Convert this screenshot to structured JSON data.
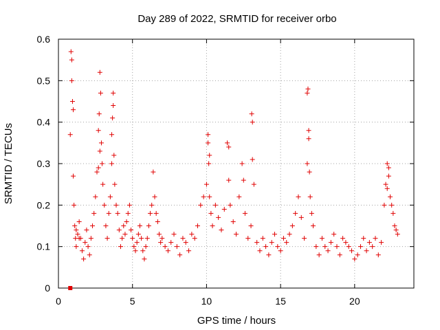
{
  "chart_data": {
    "type": "scatter",
    "title": "Day 289 of 2022, SRMTID for receiver orbo",
    "xlabel": "GPS time / hours",
    "ylabel": "SRMTID / TECUs",
    "xlim": [
      0,
      24
    ],
    "ylim": [
      0,
      0.6
    ],
    "xticks": [
      0,
      5,
      10,
      15,
      20
    ],
    "xtick_labels": [
      "0",
      "5",
      "10",
      "15",
      "20"
    ],
    "yticks": [
      0,
      0.1,
      0.2,
      0.3,
      0.4,
      0.5,
      0.6
    ],
    "ytick_labels": [
      "0",
      "0.1",
      "0.2",
      "0.3",
      "0.4",
      "0.5",
      "0.6"
    ],
    "grid": true,
    "marker": "+",
    "color": "#e00000",
    "series": [
      {
        "name": "SRMTID",
        "x": [
          0.8,
          0.85,
          0.9,
          0.95,
          1.0,
          1.05,
          1.1,
          1.15,
          1.2,
          1.3,
          1.4,
          1.5,
          1.6,
          1.7,
          1.8,
          1.9,
          2.0,
          2.1,
          2.2,
          2.3,
          2.4,
          2.5,
          2.6,
          2.7,
          2.75,
          2.8,
          2.85,
          2.9,
          2.95,
          3.0,
          3.1,
          3.2,
          3.3,
          3.4,
          3.5,
          3.6,
          3.65,
          3.7,
          3.75,
          3.8,
          3.9,
          4.0,
          4.1,
          4.2,
          4.3,
          4.4,
          4.5,
          4.6,
          4.7,
          4.8,
          4.9,
          5.0,
          5.1,
          5.2,
          5.3,
          5.4,
          5.5,
          5.6,
          5.7,
          5.8,
          5.9,
          6.0,
          6.1,
          6.2,
          6.3,
          6.4,
          6.5,
          6.6,
          6.7,
          6.8,
          6.9,
          7.0,
          7.2,
          7.4,
          7.6,
          7.8,
          8.0,
          8.2,
          8.4,
          8.6,
          8.8,
          9.0,
          9.2,
          9.4,
          9.6,
          9.8,
          10.0,
          10.1,
          10.15,
          10.2,
          10.3,
          10.4,
          10.6,
          10.8,
          11.0,
          11.2,
          11.4,
          11.5,
          11.6,
          11.8,
          12.0,
          12.2,
          12.4,
          12.5,
          12.6,
          12.8,
          13.0,
          13.05,
          13.1,
          13.2,
          13.4,
          13.6,
          13.8,
          14.0,
          14.2,
          14.4,
          14.6,
          14.8,
          15.0,
          15.2,
          15.4,
          15.6,
          15.8,
          16.0,
          16.2,
          16.4,
          16.6,
          16.8,
          16.85,
          16.9,
          16.95,
          17.0,
          17.1,
          17.2,
          17.4,
          17.6,
          17.8,
          18.0,
          18.2,
          18.4,
          18.6,
          18.8,
          19.0,
          19.2,
          19.4,
          19.6,
          19.8,
          20.0,
          20.2,
          20.4,
          20.6,
          20.8,
          21.0,
          21.2,
          21.4,
          21.6,
          21.8,
          22.0,
          22.1,
          22.2,
          22.3,
          22.4,
          22.5,
          22.6,
          22.7,
          22.8,
          22.9,
          0.9,
          1.0,
          1.2,
          1.4,
          2.7,
          2.8,
          3.6,
          3.7,
          10.1,
          10.2,
          11.5,
          13.1,
          16.8,
          16.9,
          22.2,
          22.3
        ],
        "y": [
          0.37,
          0.57,
          0.55,
          0.45,
          0.27,
          0.2,
          0.15,
          0.12,
          0.1,
          0.13,
          0.16,
          0.12,
          0.09,
          0.07,
          0.11,
          0.14,
          0.1,
          0.08,
          0.12,
          0.15,
          0.18,
          0.22,
          0.28,
          0.38,
          0.42,
          0.52,
          0.47,
          0.35,
          0.3,
          0.25,
          0.2,
          0.15,
          0.12,
          0.18,
          0.22,
          0.3,
          0.41,
          0.44,
          0.32,
          0.25,
          0.2,
          0.18,
          0.14,
          0.1,
          0.12,
          0.15,
          0.13,
          0.16,
          0.18,
          0.2,
          0.14,
          0.12,
          0.1,
          0.09,
          0.11,
          0.13,
          0.15,
          0.12,
          0.09,
          0.07,
          0.1,
          0.12,
          0.15,
          0.18,
          0.2,
          0.28,
          0.22,
          0.18,
          0.16,
          0.13,
          0.11,
          0.12,
          0.1,
          0.09,
          0.11,
          0.13,
          0.1,
          0.08,
          0.12,
          0.11,
          0.09,
          0.13,
          0.12,
          0.15,
          0.2,
          0.22,
          0.25,
          0.37,
          0.3,
          0.22,
          0.18,
          0.15,
          0.2,
          0.17,
          0.14,
          0.19,
          0.35,
          0.26,
          0.2,
          0.16,
          0.13,
          0.22,
          0.3,
          0.26,
          0.18,
          0.12,
          0.15,
          0.42,
          0.4,
          0.25,
          0.11,
          0.09,
          0.12,
          0.1,
          0.08,
          0.11,
          0.13,
          0.1,
          0.09,
          0.12,
          0.11,
          0.13,
          0.15,
          0.18,
          0.22,
          0.17,
          0.12,
          0.3,
          0.48,
          0.38,
          0.28,
          0.22,
          0.18,
          0.15,
          0.1,
          0.08,
          0.12,
          0.1,
          0.09,
          0.11,
          0.13,
          0.1,
          0.08,
          0.12,
          0.11,
          0.1,
          0.09,
          0.07,
          0.08,
          0.1,
          0.12,
          0.09,
          0.11,
          0.1,
          0.12,
          0.08,
          0.11,
          0.2,
          0.25,
          0.3,
          0.27,
          0.22,
          0.2,
          0.18,
          0.15,
          0.14,
          0.13,
          0.5,
          0.43,
          0.14,
          0.12,
          0.29,
          0.33,
          0.37,
          0.47,
          0.35,
          0.32,
          0.34,
          0.31,
          0.47,
          0.36,
          0.24,
          0.29
        ]
      }
    ],
    "extra_marker": {
      "x": 0.8,
      "y": 0.0
    }
  }
}
